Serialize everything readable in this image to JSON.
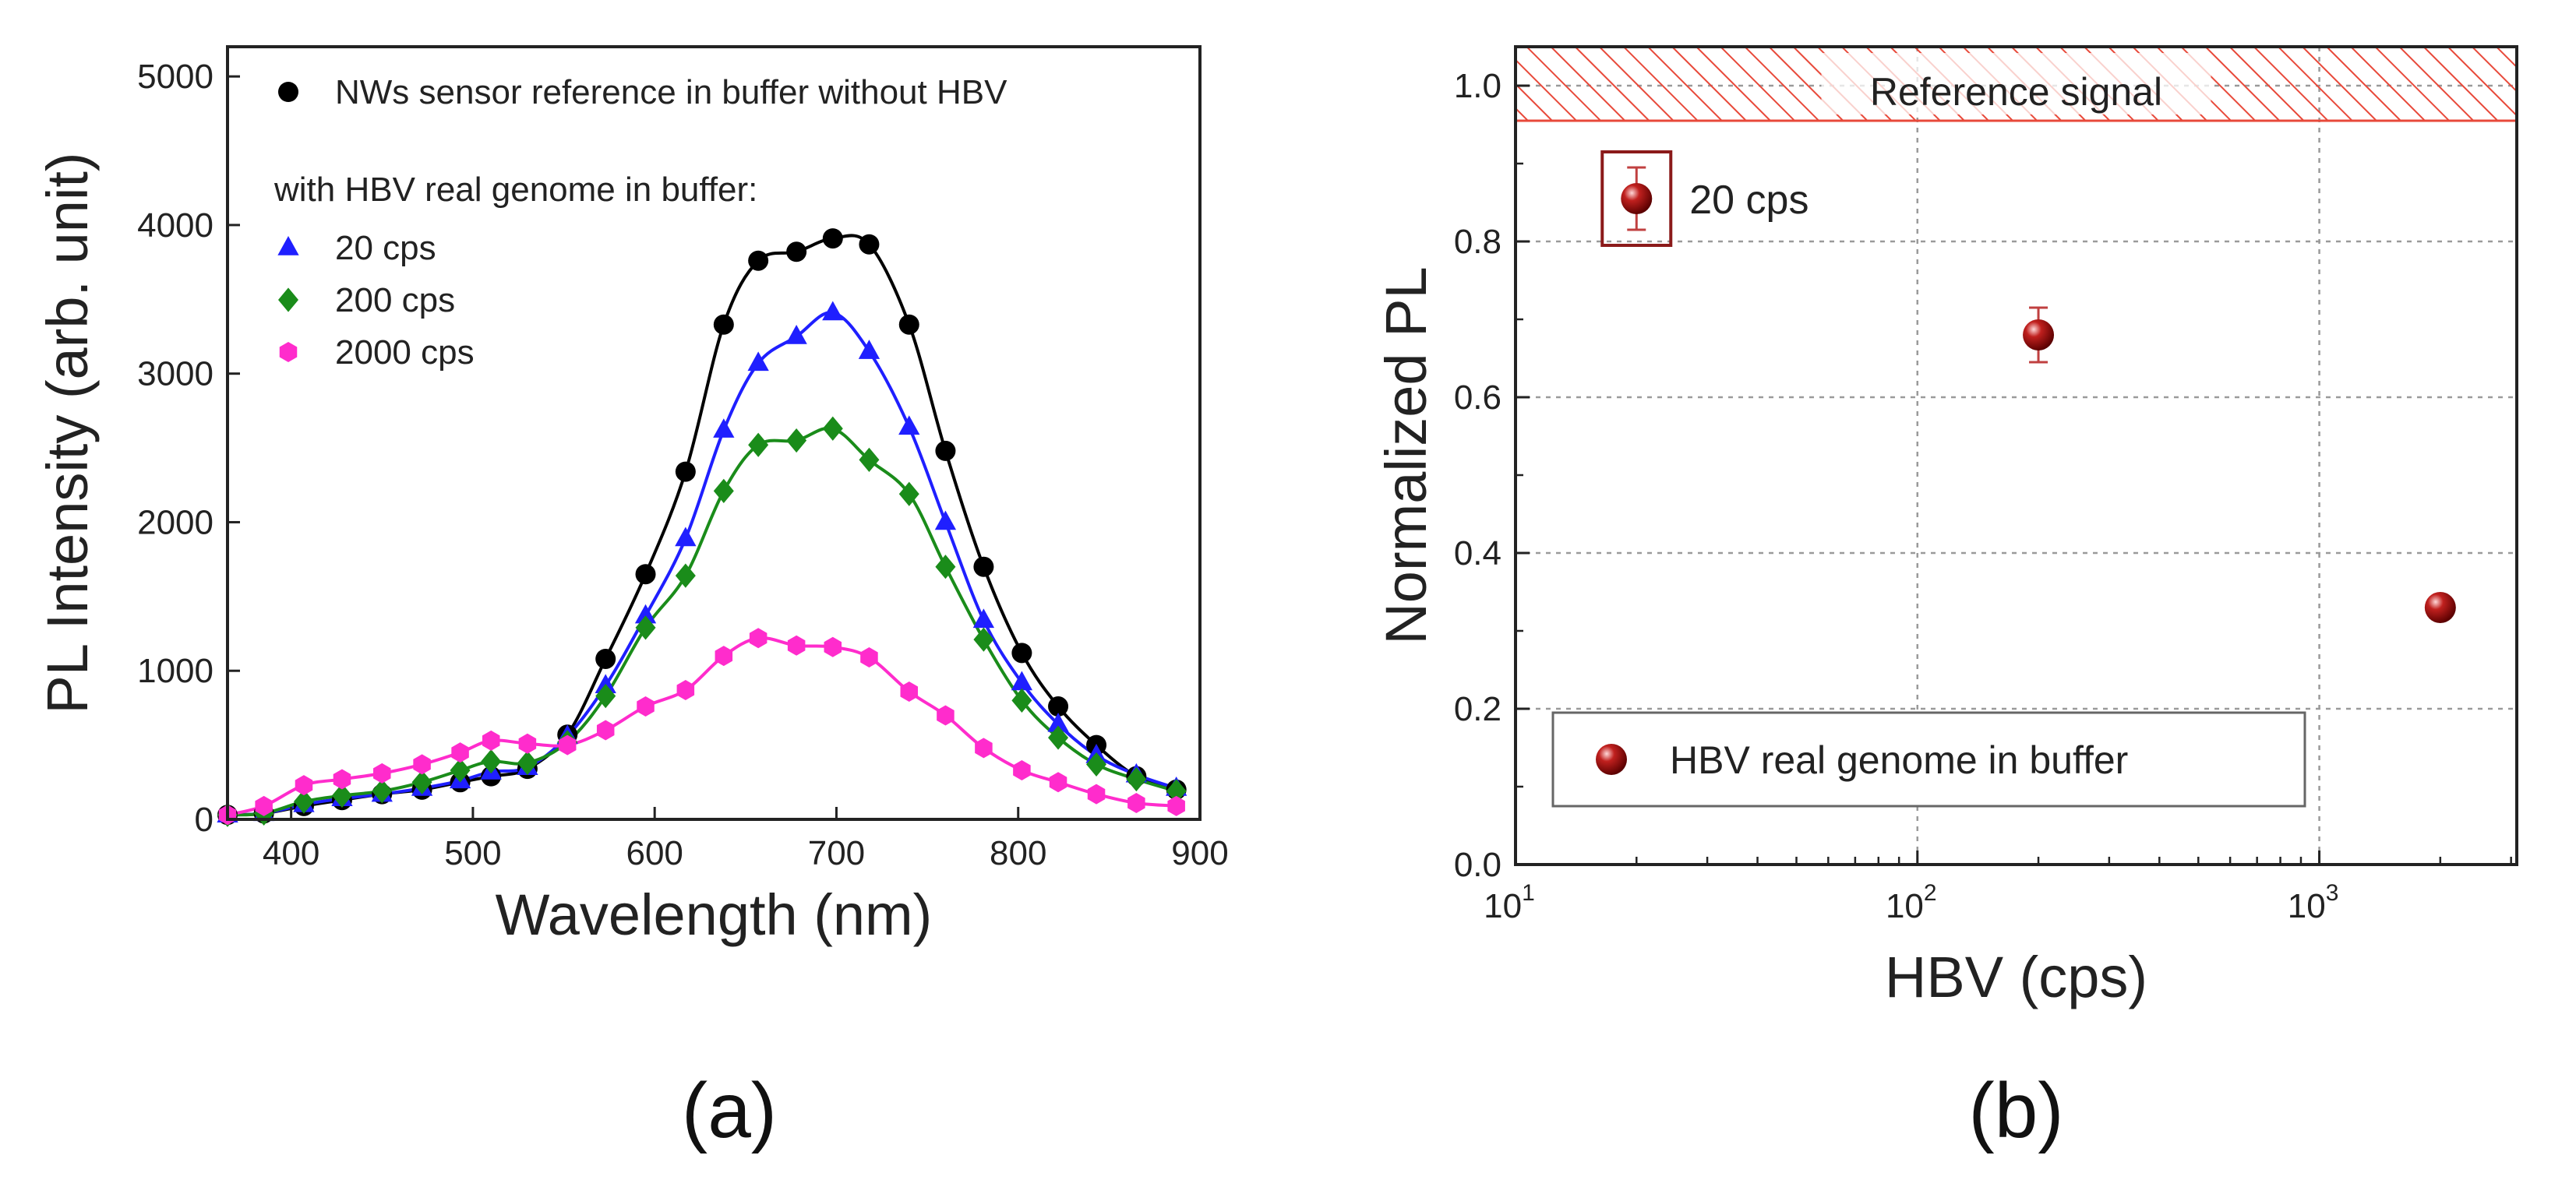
{
  "chart_data": [
    {
      "type": "line",
      "panel_label": "(a)",
      "xlabel": "Wavelength (nm)",
      "ylabel": "PL Intensity (arb. unit)",
      "xlim": [
        365,
        900
      ],
      "ylim": [
        0,
        5200
      ],
      "xticks": [
        400,
        500,
        600,
        700,
        800,
        900
      ],
      "yticks": [
        0,
        1000,
        2000,
        3000,
        4000,
        5000
      ],
      "legend_group_title": "with HBV real genome in buffer:",
      "legend_position": "top-left",
      "x": [
        365,
        385,
        407,
        428,
        450,
        472,
        493,
        510,
        530,
        552,
        573,
        595,
        617,
        638,
        657,
        678,
        698,
        718,
        740,
        760,
        781,
        802,
        822,
        843,
        865,
        887
      ],
      "series": [
        {
          "name": "NWs sensor reference in buffer without HBV",
          "marker": "circle",
          "color": "#000000",
          "values": [
            30,
            40,
            90,
            130,
            170,
            200,
            250,
            290,
            340,
            570,
            1080,
            1650,
            2340,
            3330,
            3760,
            3820,
            3910,
            3870,
            3330,
            2480,
            1700,
            1120,
            760,
            500,
            290,
            200
          ]
        },
        {
          "name": "20 cps",
          "marker": "triangle",
          "color": "#1f1fff",
          "values": [
            30,
            40,
            100,
            140,
            170,
            210,
            260,
            320,
            350,
            560,
            900,
            1370,
            1890,
            2620,
            3070,
            3250,
            3410,
            3150,
            2640,
            2000,
            1340,
            920,
            640,
            430,
            300,
            210
          ]
        },
        {
          "name": "200 cps",
          "marker": "diamond",
          "color": "#1a8c1a",
          "values": [
            30,
            40,
            120,
            160,
            190,
            250,
            330,
            390,
            380,
            520,
            830,
            1290,
            1640,
            2210,
            2520,
            2550,
            2630,
            2420,
            2190,
            1700,
            1210,
            800,
            550,
            370,
            270,
            190
          ]
        },
        {
          "name": "2000 cps",
          "marker": "hexagon",
          "color": "#ff2ccc",
          "values": [
            30,
            90,
            230,
            270,
            310,
            370,
            450,
            530,
            510,
            500,
            600,
            760,
            870,
            1100,
            1220,
            1170,
            1160,
            1090,
            860,
            700,
            480,
            330,
            250,
            170,
            110,
            90
          ]
        }
      ]
    },
    {
      "type": "scatter",
      "panel_label": "(b)",
      "xlabel": "HBV (cps)",
      "ylabel": "Normalized PL",
      "xscale": "log",
      "xlim": [
        10,
        3100
      ],
      "ylim": [
        0.0,
        1.05
      ],
      "xticks": [
        {
          "base": "10",
          "exp": "1"
        },
        {
          "base": "10",
          "exp": "2"
        },
        {
          "base": "10",
          "exp": "3"
        }
      ],
      "xtick_values": [
        10,
        100,
        1000
      ],
      "yticks": [
        "0.0",
        "0.2",
        "0.4",
        "0.6",
        "0.8",
        "1.0"
      ],
      "grid": true,
      "band_label": "Reference signal",
      "band_range": [
        0.955,
        1.05
      ],
      "annotation": "20 cps",
      "legend_position": "bottom-left",
      "series": [
        {
          "name": "HBV real genome in buffer",
          "color": "#8b0000",
          "points": [
            {
              "x": 20,
              "y": 0.855,
              "err": 0.04
            },
            {
              "x": 200,
              "y": 0.68,
              "err": 0.035
            },
            {
              "x": 2000,
              "y": 0.33,
              "err": 0.01
            }
          ]
        }
      ]
    }
  ]
}
